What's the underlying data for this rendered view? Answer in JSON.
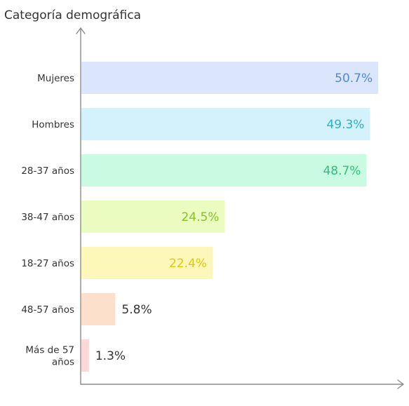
{
  "chart_data": {
    "type": "bar",
    "orientation": "horizontal",
    "ylabel": "Categoría demográfica",
    "xlabel": "",
    "categories": [
      "Mujeres",
      "Hombres",
      "28-37 años",
      "38-47 años",
      "18-27 años",
      "48-57 años",
      "Más de 57 años"
    ],
    "category_lines": [
      [
        "Mujeres"
      ],
      [
        "Hombres"
      ],
      [
        "28-37 años"
      ],
      [
        "38-47 años"
      ],
      [
        "18-27 años"
      ],
      [
        "48-57 años"
      ],
      [
        "Más de 57",
        "años"
      ]
    ],
    "values": [
      50.7,
      49.3,
      48.7,
      24.5,
      22.4,
      5.8,
      1.3
    ],
    "value_labels": [
      "50.7%",
      "49.3%",
      "48.7%",
      "24.5%",
      "22.4%",
      "5.8%",
      "1.3%"
    ],
    "xlim": [
      0,
      52
    ],
    "grid": false,
    "colors": {
      "bars": [
        "#dbe6fd",
        "#d3f2fb",
        "#c9fbe2",
        "#eafcc0",
        "#fdf7b9",
        "#fde0cc",
        "#fdd8d8"
      ],
      "labels_inside": [
        "#4a8ae0",
        "#27b2cf",
        "#2fc07a",
        "#86c225",
        "#e1c70a",
        "#333333",
        "#333333"
      ],
      "axis": "#8a8a8a",
      "text": "#333333"
    }
  }
}
